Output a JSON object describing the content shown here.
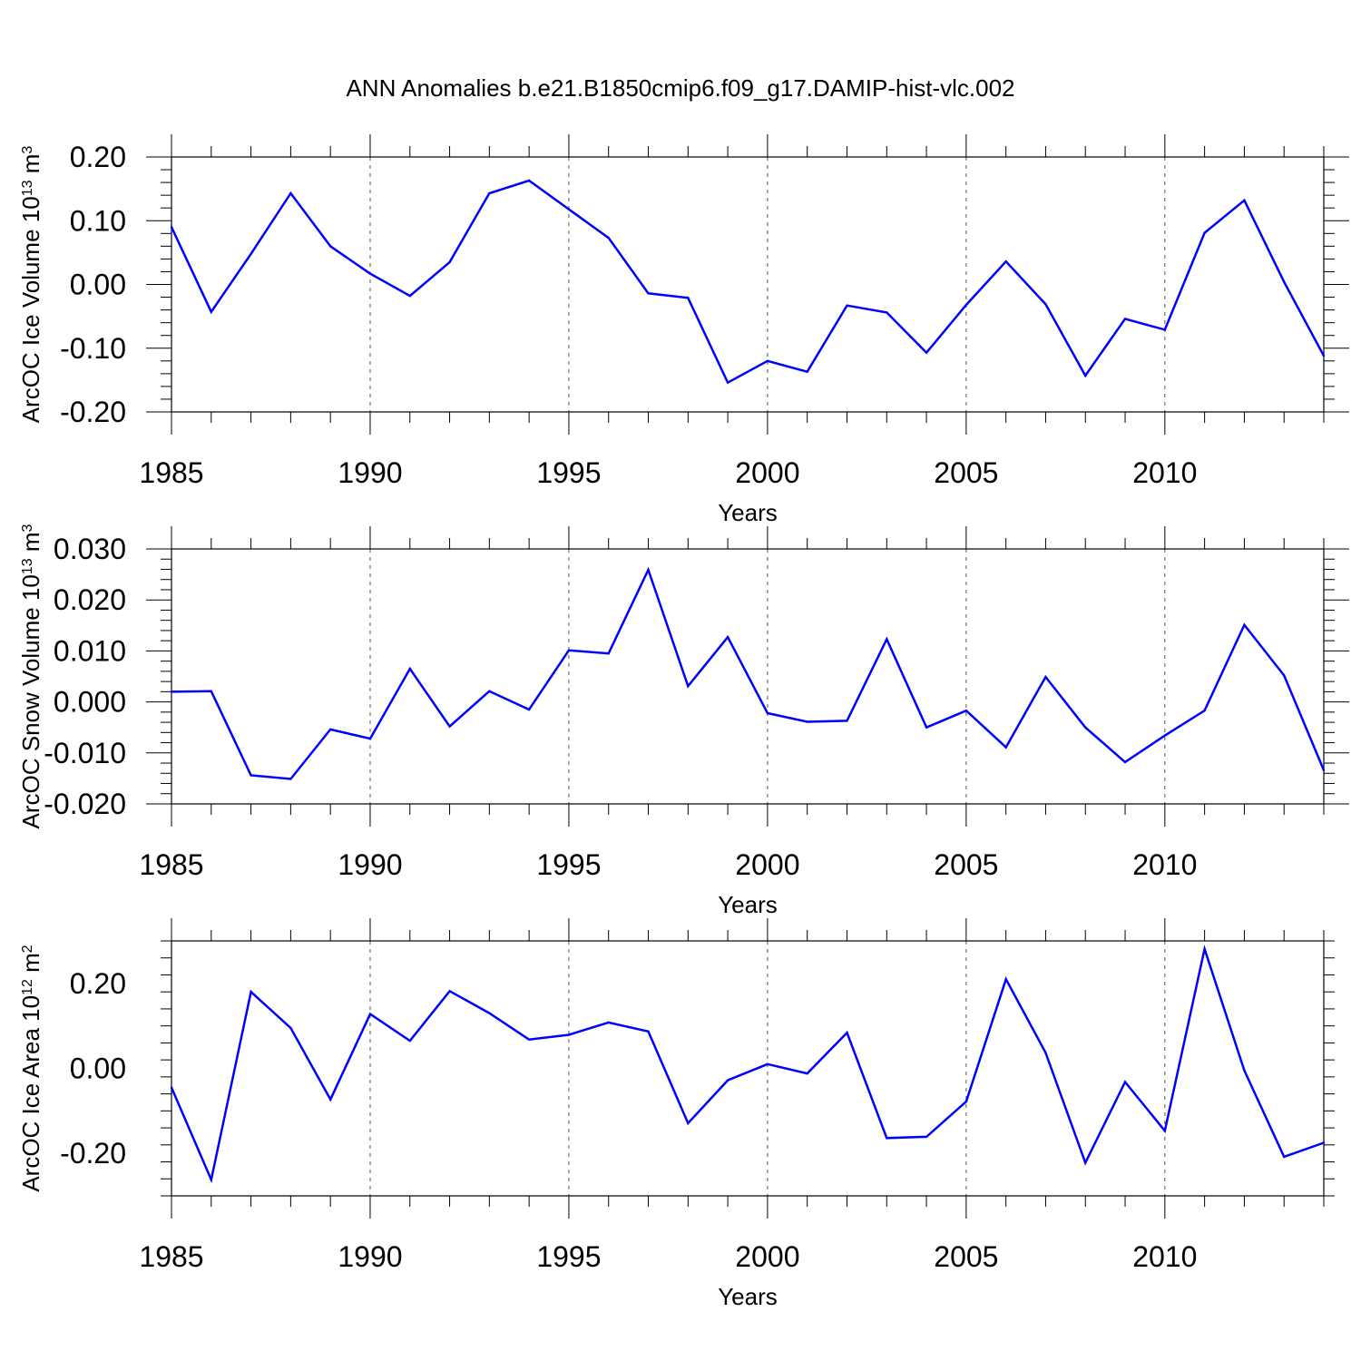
{
  "title": "ANN Anomalies b.e21.B1850cmip6.f09_g17.DAMIP-hist-vlc.002",
  "colors": {
    "line": "#0000ff",
    "axis": "#000000",
    "grid": "#555555"
  },
  "chart_data": [
    {
      "type": "line",
      "xlabel": "Years",
      "ylabel": {
        "prefix": "ArcOC Ice Volume 10",
        "exponent": "13",
        "unit": " m",
        "unit_exponent": "3"
      },
      "xlim": [
        1985,
        2014
      ],
      "ylim": [
        -0.2,
        0.2
      ],
      "x_ticks": [
        "1985",
        "1990",
        "1995",
        "2000",
        "2005",
        "2010"
      ],
      "y_ticks": [
        "0.20",
        "0.10",
        "0.00",
        "-0.10",
        "-0.20"
      ],
      "y_tick_values": [
        0.2,
        0.1,
        0.0,
        -0.1,
        -0.2
      ],
      "grid": "vertical dashed at major x ticks",
      "x": [
        1985,
        1986,
        1987,
        1988,
        1989,
        1990,
        1991,
        1992,
        1993,
        1994,
        1995,
        1996,
        1997,
        1998,
        1999,
        2000,
        2001,
        2002,
        2003,
        2004,
        2005,
        2006,
        2007,
        2008,
        2009,
        2010,
        2011,
        2012,
        2013,
        2014
      ],
      "values": [
        0.09,
        -0.043,
        0.048,
        0.143,
        0.06,
        0.017,
        -0.018,
        0.035,
        0.143,
        0.163,
        0.118,
        0.073,
        -0.014,
        -0.021,
        -0.154,
        -0.12,
        -0.137,
        -0.033,
        -0.044,
        -0.107,
        -0.032,
        0.036,
        -0.031,
        -0.143,
        -0.054,
        -0.071,
        0.081,
        0.132,
        0.004,
        -0.112
      ]
    },
    {
      "type": "line",
      "xlabel": "Years",
      "ylabel": {
        "prefix": "ArcOC Snow Volume 10",
        "exponent": "13",
        "unit": " m",
        "unit_exponent": "3"
      },
      "xlim": [
        1985,
        2014
      ],
      "ylim": [
        -0.02,
        0.03
      ],
      "x_ticks": [
        "1985",
        "1990",
        "1995",
        "2000",
        "2005",
        "2010"
      ],
      "y_ticks": [
        "0.030",
        "0.020",
        "0.010",
        "0.000",
        "-0.010",
        "-0.020"
      ],
      "y_tick_values": [
        0.03,
        0.02,
        0.01,
        0.0,
        -0.01,
        -0.02
      ],
      "grid": "vertical dashed at major x ticks",
      "x": [
        1985,
        1986,
        1987,
        1988,
        1989,
        1990,
        1991,
        1992,
        1993,
        1994,
        1995,
        1996,
        1997,
        1998,
        1999,
        2000,
        2001,
        2002,
        2003,
        2004,
        2005,
        2006,
        2007,
        2008,
        2009,
        2010,
        2011,
        2012,
        2013,
        2014
      ],
      "values": [
        0.002,
        0.0021,
        -0.0144,
        -0.0151,
        -0.0054,
        -0.0072,
        0.0065,
        -0.0048,
        0.0021,
        -0.0015,
        0.0101,
        0.0095,
        0.0259,
        0.0031,
        0.0127,
        -0.0022,
        -0.0039,
        -0.0037,
        0.0123,
        -0.005,
        -0.0017,
        -0.0089,
        0.0049,
        -0.005,
        -0.0118,
        -0.0066,
        -0.0017,
        0.0151,
        0.0052,
        -0.0134
      ]
    },
    {
      "type": "line",
      "xlabel": "Years",
      "ylabel": {
        "prefix": "ArcOC Ice Area 10",
        "exponent": "12",
        "unit": " m",
        "unit_exponent": "2"
      },
      "xlim": [
        1985,
        2014
      ],
      "ylim": [
        -0.3,
        0.3
      ],
      "x_ticks": [
        "1985",
        "1990",
        "1995",
        "2000",
        "2005",
        "2010"
      ],
      "y_ticks": [
        "0.20",
        "0.00",
        "-0.20"
      ],
      "y_tick_values": [
        0.2,
        0.0,
        -0.2
      ],
      "grid": "vertical dashed at major x ticks",
      "x": [
        1985,
        1986,
        1987,
        1988,
        1989,
        1990,
        1991,
        1992,
        1993,
        1994,
        1995,
        1996,
        1997,
        1998,
        1999,
        2000,
        2001,
        2002,
        2003,
        2004,
        2005,
        2006,
        2007,
        2008,
        2009,
        2010,
        2011,
        2012,
        2013,
        2014
      ],
      "values": [
        -0.045,
        -0.262,
        0.18,
        0.095,
        -0.073,
        0.128,
        0.065,
        0.182,
        0.13,
        0.068,
        0.079,
        0.108,
        0.087,
        -0.129,
        -0.028,
        0.01,
        -0.012,
        0.084,
        -0.164,
        -0.161,
        -0.078,
        0.21,
        0.037,
        -0.222,
        -0.032,
        -0.147,
        0.281,
        -0.005,
        -0.208,
        -0.175
      ]
    }
  ]
}
